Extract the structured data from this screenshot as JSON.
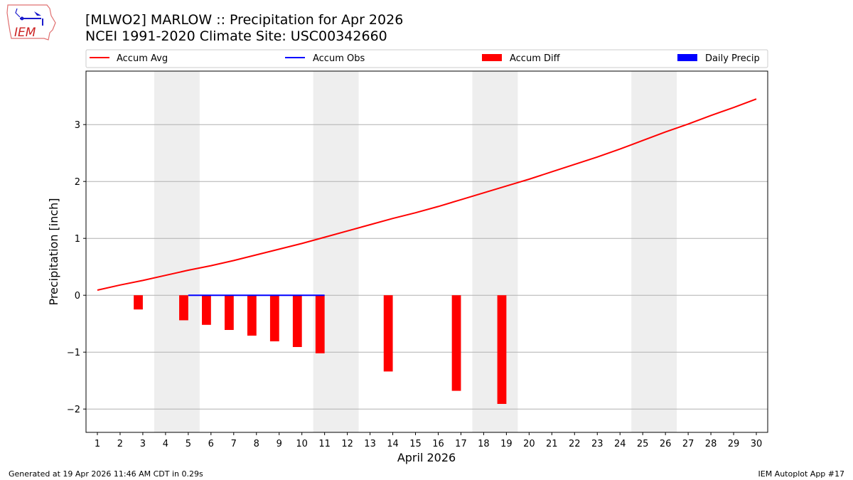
{
  "header": {
    "title_line1": "[MLWO2] MARLOW :: Precipitation for Apr 2026",
    "title_line2": "NCEI 1991-2020 Climate Site: USC00342660",
    "logo_text": "IEM"
  },
  "footer": {
    "generated": "Generated at 19 Apr 2026 11:46 AM CDT in 0.29s",
    "app": "IEM Autoplot App #17"
  },
  "chart_data": {
    "type": "line",
    "xlabel": "April 2026",
    "ylabel": "Precipitation [inch]",
    "xlim": [
      0.5,
      30.5
    ],
    "ylim": [
      -2.41,
      3.94
    ],
    "x_ticks": [
      1,
      2,
      3,
      4,
      5,
      6,
      7,
      8,
      9,
      10,
      11,
      12,
      13,
      14,
      15,
      16,
      17,
      18,
      19,
      20,
      21,
      22,
      23,
      24,
      25,
      26,
      27,
      28,
      29,
      30
    ],
    "y_ticks": [
      -2,
      -1,
      0,
      1,
      2,
      3
    ],
    "y_tick_labels": [
      "−2",
      "−1",
      "0",
      "1",
      "2",
      "3"
    ],
    "grid": "horizontal",
    "legend_placement": "top",
    "weekend_shading": [
      [
        4,
        5
      ],
      [
        11,
        12
      ],
      [
        18,
        19
      ],
      [
        25,
        26
      ]
    ],
    "colors": {
      "accum_avg": "#ff0000",
      "accum_obs": "#0000ff",
      "accum_diff": "#ff0000",
      "daily_precip": "#0000ff",
      "weekend": "#eeeeee",
      "grid": "#b0b0b0"
    },
    "legend": [
      "Accum Avg",
      "Accum Obs",
      "Accum Diff",
      "Daily Precip"
    ],
    "series": [
      {
        "name": "Accum Avg",
        "kind": "line",
        "x": [
          1,
          2,
          3,
          4,
          5,
          6,
          7,
          8,
          9,
          10,
          11,
          12,
          13,
          14,
          15,
          16,
          17,
          18,
          19,
          20,
          21,
          22,
          23,
          24,
          25,
          26,
          27,
          28,
          29,
          30
        ],
        "values": [
          0.09,
          0.18,
          0.26,
          0.35,
          0.44,
          0.52,
          0.61,
          0.71,
          0.81,
          0.91,
          1.02,
          1.13,
          1.24,
          1.35,
          1.45,
          1.56,
          1.68,
          1.8,
          1.92,
          2.04,
          2.17,
          2.3,
          2.43,
          2.57,
          2.72,
          2.87,
          3.01,
          3.16,
          3.3,
          3.45
        ]
      },
      {
        "name": "Accum Obs",
        "kind": "line",
        "x": [
          5,
          6,
          7,
          8,
          9,
          10,
          11
        ],
        "values": [
          0,
          0,
          0,
          0,
          0,
          0,
          0
        ]
      },
      {
        "name": "Accum Diff",
        "kind": "bar",
        "x": [
          3,
          5,
          6,
          7,
          8,
          9,
          10,
          11,
          14,
          17,
          19
        ],
        "values": [
          -0.25,
          -0.44,
          -0.52,
          -0.61,
          -0.71,
          -0.81,
          -0.91,
          -1.02,
          -1.34,
          -1.68,
          -1.91
        ]
      },
      {
        "name": "Daily Precip",
        "kind": "bar",
        "x": [],
        "values": []
      }
    ]
  }
}
